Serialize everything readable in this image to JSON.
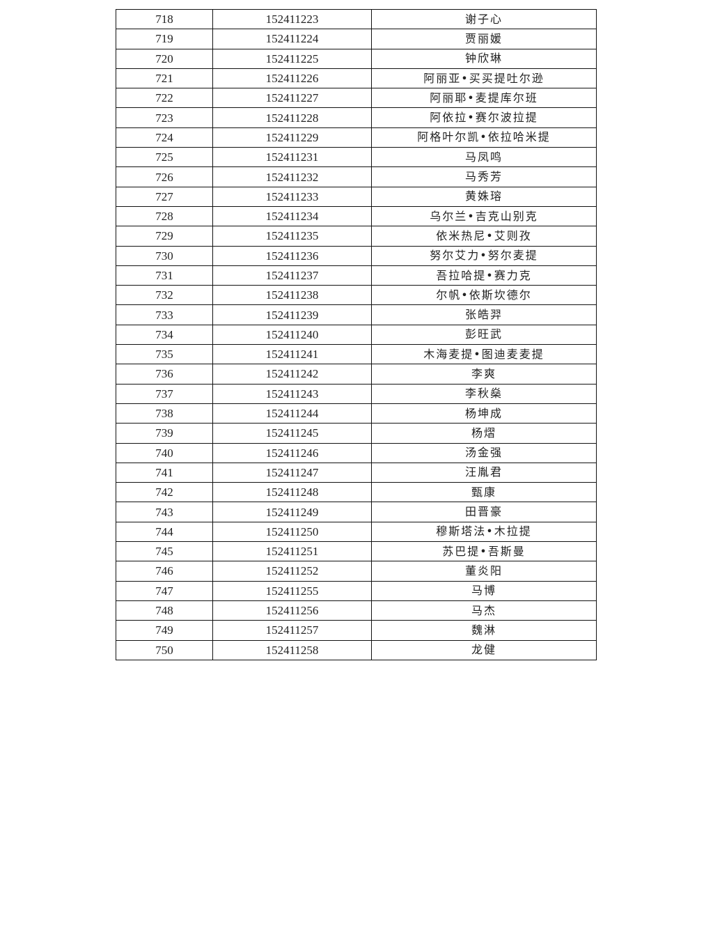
{
  "table": {
    "rows": [
      [
        "718",
        "152411223",
        "谢子心"
      ],
      [
        "719",
        "152411224",
        "贾丽媛"
      ],
      [
        "720",
        "152411225",
        "钟欣琳"
      ],
      [
        "721",
        "152411226",
        "阿丽亚•买买提吐尔逊"
      ],
      [
        "722",
        "152411227",
        "阿丽耶•麦提库尔班"
      ],
      [
        "723",
        "152411228",
        "阿依拉•赛尔波拉提"
      ],
      [
        "724",
        "152411229",
        "阿格叶尔凯•依拉哈米提"
      ],
      [
        "725",
        "152411231",
        "马凤鸣"
      ],
      [
        "726",
        "152411232",
        "马秀芳"
      ],
      [
        "727",
        "152411233",
        "黄姝瑢"
      ],
      [
        "728",
        "152411234",
        "乌尔兰•吉克山别克"
      ],
      [
        "729",
        "152411235",
        "依米热尼•艾则孜"
      ],
      [
        "730",
        "152411236",
        "努尔艾力•努尔麦提"
      ],
      [
        "731",
        "152411237",
        "吾拉哈提•赛力克"
      ],
      [
        "732",
        "152411238",
        "尔帆•依斯坎德尔"
      ],
      [
        "733",
        "152411239",
        "张皓羿"
      ],
      [
        "734",
        "152411240",
        "彭旺武"
      ],
      [
        "735",
        "152411241",
        "木海麦提•图迪麦麦提"
      ],
      [
        "736",
        "152411242",
        "李爽"
      ],
      [
        "737",
        "152411243",
        "李秋燊"
      ],
      [
        "738",
        "152411244",
        "杨坤成"
      ],
      [
        "739",
        "152411245",
        "杨熠"
      ],
      [
        "740",
        "152411246",
        "汤金强"
      ],
      [
        "741",
        "152411247",
        "汪胤君"
      ],
      [
        "742",
        "152411248",
        "甄康"
      ],
      [
        "743",
        "152411249",
        "田晋豪"
      ],
      [
        "744",
        "152411250",
        "穆斯塔法•木拉提"
      ],
      [
        "745",
        "152411251",
        "苏巴提•吾斯曼"
      ],
      [
        "746",
        "152411252",
        "董炎阳"
      ],
      [
        "747",
        "152411255",
        "马博"
      ],
      [
        "748",
        "152411256",
        "马杰"
      ],
      [
        "749",
        "152411257",
        "魏淋"
      ],
      [
        "750",
        "152411258",
        "龙健"
      ]
    ]
  }
}
